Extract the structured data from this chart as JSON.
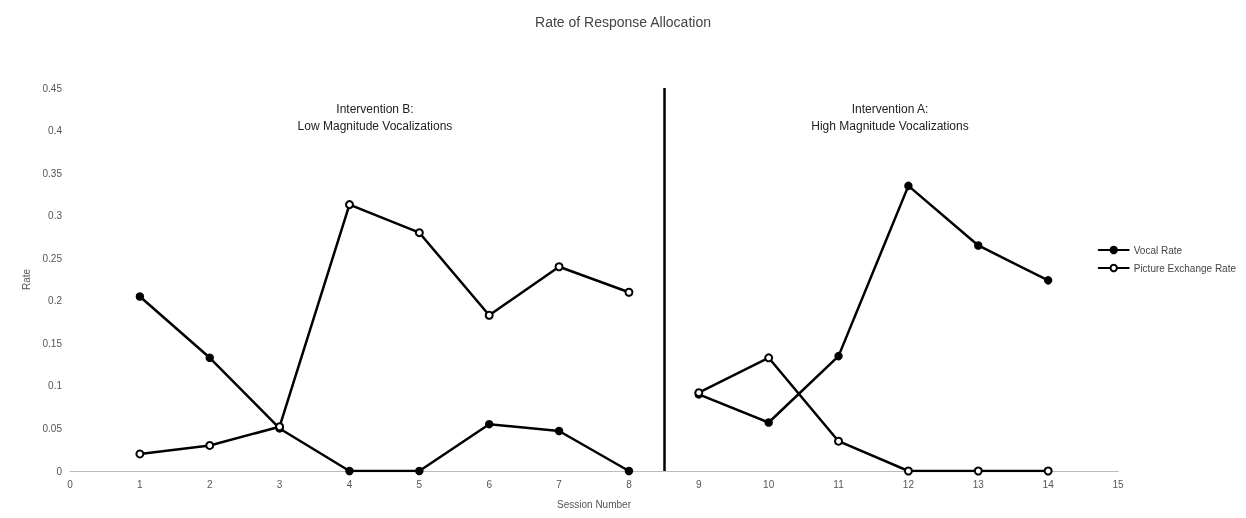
{
  "chart_data": {
    "type": "line",
    "title": "Rate of Response Allocation",
    "xlabel": "Session Number",
    "ylabel": "Rate",
    "x": [
      1,
      2,
      3,
      4,
      5,
      6,
      7,
      8,
      8.5,
      9,
      10,
      11,
      12,
      13,
      14
    ],
    "series": [
      {
        "name": "Vocal Rate",
        "color": "#000000",
        "marker": "circle",
        "values": [
          0.205,
          0.133,
          0.05,
          0,
          0,
          0.055,
          0.047,
          0,
          null,
          0.09,
          0.057,
          0.135,
          0.335,
          0.265,
          0.224
        ]
      },
      {
        "name": "Picture Exchange Rate",
        "color": "#000000",
        "marker": "circle-open",
        "values": [
          0.02,
          0.03,
          0.052,
          0.313,
          0.28,
          0.183,
          0.24,
          0.21,
          null,
          0.092,
          0.133,
          0.035,
          0,
          0,
          0
        ]
      }
    ],
    "xlim": [
      0,
      15
    ],
    "xticks": [
      0,
      1,
      2,
      3,
      4,
      5,
      6,
      7,
      8,
      9,
      10,
      11,
      12,
      13,
      14,
      15
    ],
    "ylim": [
      0,
      0.45
    ],
    "yticks": [
      0,
      0.05,
      0.1,
      0.15,
      0.2,
      0.25,
      0.3,
      0.35,
      0.4,
      0.45
    ],
    "ref_lines": [
      {
        "axis": "x",
        "value": 8.5,
        "color": "#000000"
      }
    ],
    "annotations": [
      "Intervention B:\nLow Magnitude Vocalizations",
      "Intervention A:\nHigh Magnitude Vocalizations"
    ],
    "grid": false,
    "legend": "right",
    "line_style": "solid"
  }
}
